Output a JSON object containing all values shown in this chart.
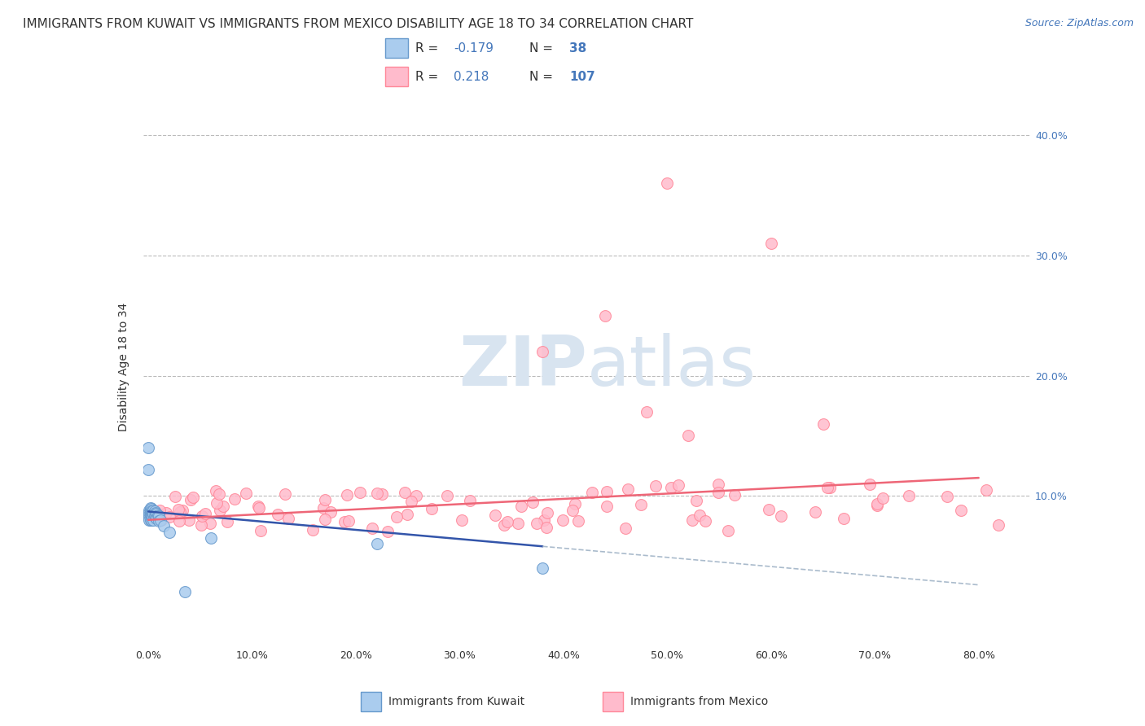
{
  "title": "IMMIGRANTS FROM KUWAIT VS IMMIGRANTS FROM MEXICO DISABILITY AGE 18 TO 34 CORRELATION CHART",
  "source": "Source: ZipAtlas.com",
  "ylabel": "Disability Age 18 to 34",
  "legend_labels": [
    "Immigrants from Kuwait",
    "Immigrants from Mexico"
  ],
  "kuwait_R": -0.179,
  "kuwait_N": 38,
  "mexico_R": 0.218,
  "mexico_N": 107,
  "kuwait_fill": "#AACCEE",
  "kuwait_edge": "#6699CC",
  "kuwait_line": "#3355AA",
  "mexico_fill": "#FFBBCC",
  "mexico_edge": "#FF8899",
  "mexico_line": "#EE6677",
  "xlim": [
    -0.005,
    0.85
  ],
  "ylim": [
    -0.025,
    0.44
  ],
  "xticks": [
    0.0,
    0.1,
    0.2,
    0.3,
    0.4,
    0.5,
    0.6,
    0.7,
    0.8
  ],
  "ytick_right": [
    0.1,
    0.2,
    0.3,
    0.4
  ],
  "background_color": "#FFFFFF",
  "grid_color": "#BBBBBB",
  "tick_color": "#4477BB",
  "label_color": "#333333",
  "title_fontsize": 11,
  "tick_fontsize": 9,
  "watermark_color": "#D8E4F0",
  "legend_edge_color": "#CCCCCC",
  "source_color": "#4477BB"
}
